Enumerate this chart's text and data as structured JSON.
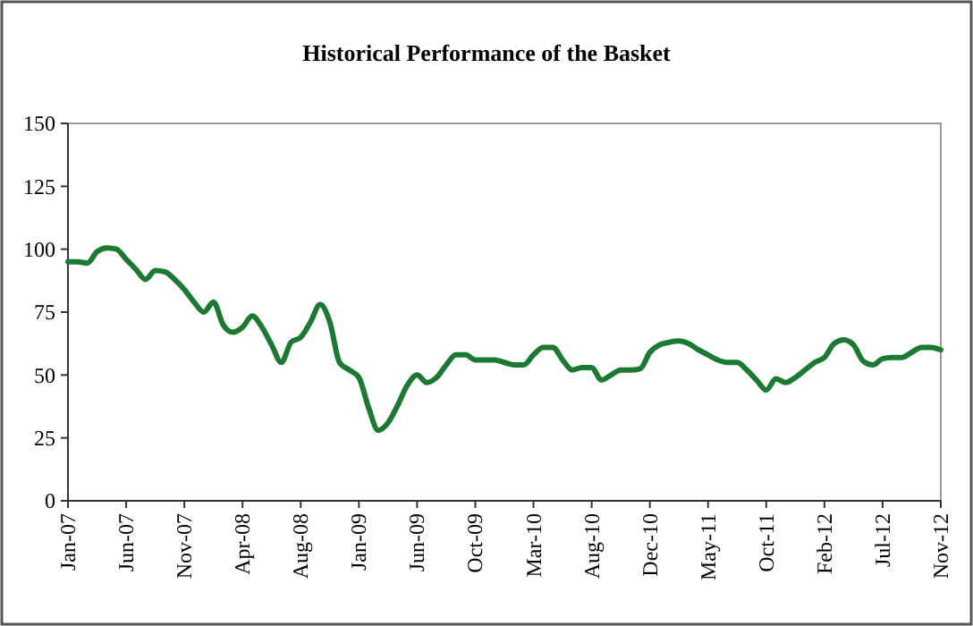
{
  "chart_data": {
    "type": "line",
    "title": "Historical Performance of the Basket",
    "categories": [
      "Jan-07",
      null,
      null,
      null,
      null,
      null,
      "Jun-07",
      null,
      null,
      null,
      null,
      null,
      "Nov-07",
      null,
      null,
      null,
      null,
      null,
      "Apr-08",
      null,
      null,
      null,
      null,
      null,
      "Aug-08",
      null,
      null,
      null,
      null,
      null,
      "Jan-09",
      null,
      null,
      null,
      null,
      null,
      "Jun-09",
      null,
      null,
      null,
      null,
      null,
      "Oct-09",
      null,
      null,
      null,
      null,
      null,
      "Mar-10",
      null,
      null,
      null,
      null,
      null,
      "Aug-10",
      null,
      null,
      null,
      null,
      null,
      "Dec-10",
      null,
      null,
      null,
      null,
      null,
      "May-11",
      null,
      null,
      null,
      null,
      null,
      "Oct-11",
      null,
      null,
      null,
      null,
      null,
      "Feb-12",
      null,
      null,
      null,
      null,
      null,
      "Jul-12",
      null,
      null,
      null,
      null,
      null,
      "Nov-12"
    ],
    "series": [
      {
        "color": "#1a7a32",
        "values": [
          95,
          95,
          94.5,
          99,
          100.5,
          100,
          96,
          92,
          88,
          91.5,
          91,
          88,
          84,
          79,
          75,
          79,
          70,
          67,
          69,
          73.5,
          69,
          62,
          55,
          63,
          65,
          71,
          78,
          71,
          55,
          52,
          49,
          37,
          28,
          31,
          38,
          46,
          50,
          47,
          49,
          54,
          58,
          58,
          56,
          56,
          56,
          55,
          54,
          54,
          58,
          61,
          61,
          56,
          52,
          53,
          53,
          48,
          50,
          52,
          52,
          52.5,
          59,
          62,
          63,
          63.5,
          62.5,
          60,
          58,
          56,
          55,
          55,
          52,
          48,
          44,
          48.5,
          47,
          49,
          52,
          55,
          57,
          62.5,
          64,
          62,
          55.5,
          54,
          56.5,
          57,
          57,
          59,
          61,
          61,
          60
        ]
      }
    ],
    "ylim": [
      0,
      150
    ],
    "yticks": [
      0,
      25,
      50,
      75,
      100,
      125,
      150
    ],
    "grid": false,
    "marker": "none",
    "line_style": "solid"
  }
}
